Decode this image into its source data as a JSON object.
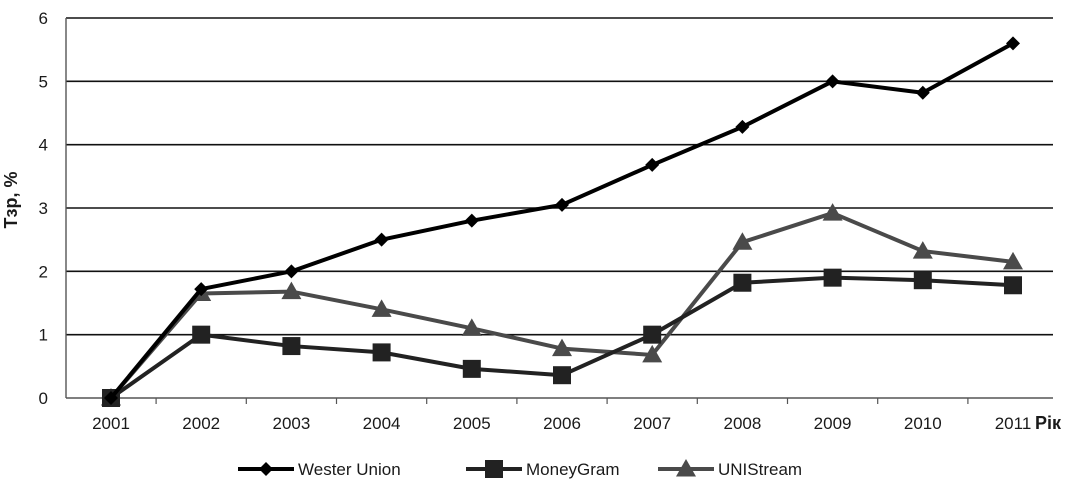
{
  "chart_data": {
    "type": "line",
    "title": "",
    "xlabel": "Рік",
    "ylabel": "Tзр, %",
    "categories": [
      "2001",
      "2002",
      "2003",
      "2004",
      "2005",
      "2006",
      "2007",
      "2008",
      "2009",
      "2010",
      "2011"
    ],
    "ylim": [
      0,
      6
    ],
    "yticks": [
      "0",
      "1",
      "2",
      "3",
      "4",
      "5",
      "6"
    ],
    "grid": "horizontal",
    "legend_position": "bottom",
    "series": [
      {
        "name": "Wester Union",
        "marker": "diamond",
        "color": "#000000",
        "values": [
          0,
          1.72,
          2.0,
          2.5,
          2.8,
          3.05,
          3.68,
          4.28,
          5.0,
          4.82,
          5.6
        ]
      },
      {
        "name": "MoneyGram",
        "marker": "square",
        "color": "#222222",
        "values": [
          0,
          1.0,
          0.82,
          0.72,
          0.46,
          0.36,
          1.0,
          1.82,
          1.9,
          1.86,
          1.78
        ]
      },
      {
        "name": "UNIStream",
        "marker": "triangle",
        "color": "#4a4a4a",
        "values": [
          0,
          1.65,
          1.68,
          1.4,
          1.1,
          0.78,
          0.68,
          2.46,
          2.92,
          2.32,
          2.15
        ]
      }
    ]
  }
}
